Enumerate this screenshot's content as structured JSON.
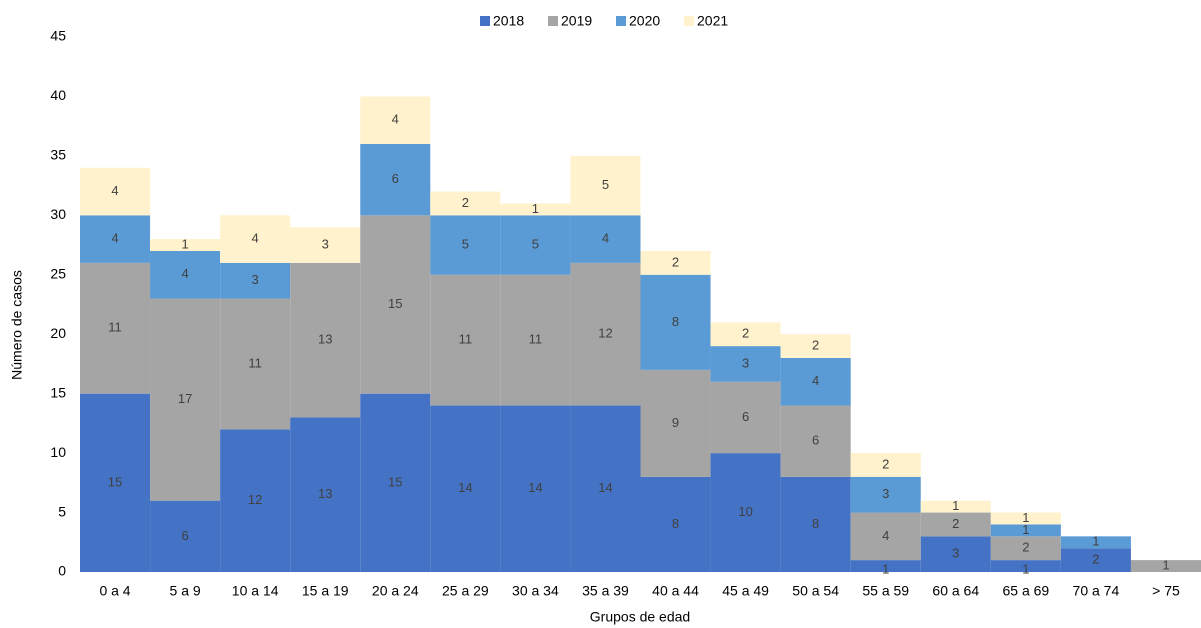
{
  "chart_data": {
    "type": "stacked_bar",
    "x_label": "Grupos de edad",
    "y_label": "Número de casos",
    "categories": [
      "0 a 4",
      "5 a 9",
      "10 a 14",
      "15 a 19",
      "20 a 24",
      "25 a 29",
      "30 a 34",
      "35 a 39",
      "40 a 44",
      "45 a 49",
      "50 a 54",
      "55 a 59",
      "60 a 64",
      "65 a 69",
      "70 a 74",
      "> 75"
    ],
    "series": [
      {
        "name": "2018",
        "color": "#4472c4",
        "values": [
          15,
          6,
          12,
          13,
          15,
          14,
          14,
          14,
          8,
          10,
          8,
          1,
          3,
          1,
          2,
          null
        ]
      },
      {
        "name": "2019",
        "color": "#a5a5a5",
        "values": [
          11,
          17,
          11,
          13,
          15,
          11,
          11,
          12,
          9,
          6,
          6,
          4,
          2,
          2,
          null,
          1
        ]
      },
      {
        "name": "2020",
        "color": "#5b9bd5",
        "values": [
          4,
          4,
          3,
          null,
          6,
          5,
          5,
          4,
          8,
          3,
          4,
          3,
          null,
          1,
          1,
          null
        ]
      },
      {
        "name": "2021",
        "color": "#fff2cc",
        "values": [
          4,
          1,
          4,
          3,
          4,
          2,
          1,
          5,
          2,
          2,
          2,
          2,
          1,
          1,
          null,
          null
        ]
      }
    ],
    "ylim": [
      0,
      45
    ],
    "yticks": [
      0,
      5,
      10,
      15,
      20,
      25,
      30,
      35,
      40,
      45
    ],
    "grid": false,
    "legend": "top"
  }
}
